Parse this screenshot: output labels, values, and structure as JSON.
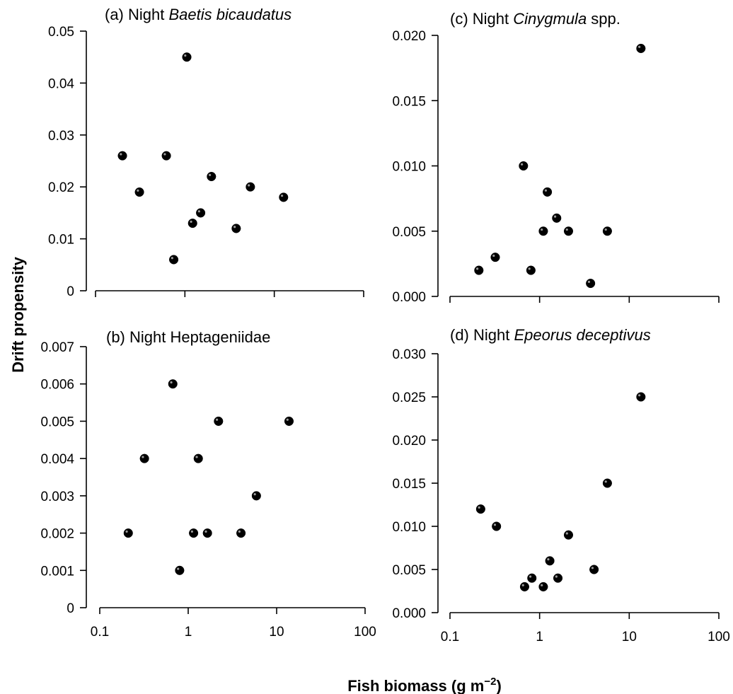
{
  "ylabel": "Drift propensity",
  "xlabel": {
    "main": "Fish biomass (g m",
    "sup": "−2",
    "end": ")"
  },
  "chart_data": [
    {
      "type": "scatter",
      "title_parts": [
        {
          "text": "(a) Night ",
          "italic": false
        },
        {
          "text": "Baetis bicaudatus",
          "italic": true
        }
      ],
      "xscale": "log",
      "xlim": [
        0.1,
        100
      ],
      "xticks": [
        0.1,
        1,
        10,
        100
      ],
      "xticklabels": [
        "0.1",
        "1",
        "10",
        "100"
      ],
      "show_xticklabels": false,
      "ylim": [
        0,
        0.05
      ],
      "yticks": [
        0,
        0.01,
        0.02,
        0.03,
        0.04,
        0.05
      ],
      "yticklabels": [
        "0",
        "0.01",
        "0.02",
        "0.03",
        "0.04",
        "0.05"
      ],
      "points": [
        [
          0.2,
          0.026
        ],
        [
          0.31,
          0.019
        ],
        [
          0.62,
          0.026
        ],
        [
          0.75,
          0.006
        ],
        [
          1.05,
          0.045
        ],
        [
          1.22,
          0.013
        ],
        [
          1.5,
          0.015
        ],
        [
          1.98,
          0.022
        ],
        [
          3.75,
          0.012
        ],
        [
          5.4,
          0.02
        ],
        [
          12.7,
          0.018
        ]
      ]
    },
    {
      "type": "scatter",
      "title_parts": [
        {
          "text": "(b) Night Heptageniidae",
          "italic": false
        }
      ],
      "xscale": "log",
      "xlim": [
        0.1,
        100
      ],
      "xticks": [
        0.1,
        1,
        10,
        100
      ],
      "xticklabels": [
        "0.1",
        "1",
        "10",
        "100"
      ],
      "show_xticklabels": true,
      "ylim": [
        0,
        0.007
      ],
      "yticks": [
        0,
        0.001,
        0.002,
        0.003,
        0.004,
        0.005,
        0.006,
        0.007
      ],
      "yticklabels": [
        "0",
        "0.001",
        "0.002",
        "0.003",
        "0.004",
        "0.005",
        "0.006",
        "0.007"
      ],
      "points": [
        [
          0.21,
          0.002
        ],
        [
          0.32,
          0.004
        ],
        [
          0.67,
          0.006
        ],
        [
          0.8,
          0.001
        ],
        [
          1.15,
          0.002
        ],
        [
          1.3,
          0.004
        ],
        [
          1.65,
          0.002
        ],
        [
          2.2,
          0.005
        ],
        [
          3.95,
          0.002
        ],
        [
          5.9,
          0.003
        ],
        [
          13.8,
          0.005
        ]
      ]
    },
    {
      "type": "scatter",
      "title_parts": [
        {
          "text": "(c) Night ",
          "italic": false
        },
        {
          "text": "Cinygmula",
          "italic": true
        },
        {
          "text": " spp.",
          "italic": false
        }
      ],
      "xscale": "log",
      "xlim": [
        0.1,
        100
      ],
      "xticks": [
        0.1,
        1,
        10,
        100
      ],
      "xticklabels": [
        "0.1",
        "1",
        "10",
        "100"
      ],
      "show_xticklabels": false,
      "ylim": [
        0,
        0.02
      ],
      "yticks": [
        0,
        0.005,
        0.01,
        0.015,
        0.02
      ],
      "yticklabels": [
        "0.000",
        "0.005",
        "0.010",
        "0.015",
        "0.020"
      ],
      "points": [
        [
          0.21,
          0.002
        ],
        [
          0.32,
          0.003
        ],
        [
          0.66,
          0.01
        ],
        [
          0.8,
          0.002
        ],
        [
          1.1,
          0.005
        ],
        [
          1.22,
          0.008
        ],
        [
          1.55,
          0.006
        ],
        [
          2.1,
          0.005
        ],
        [
          3.7,
          0.001
        ],
        [
          5.7,
          0.005
        ],
        [
          13.5,
          0.019
        ]
      ]
    },
    {
      "type": "scatter",
      "title_parts": [
        {
          "text": "(d) Night ",
          "italic": false
        },
        {
          "text": "Epeorus deceptivus",
          "italic": true
        }
      ],
      "xscale": "log",
      "xlim": [
        0.1,
        100
      ],
      "xticks": [
        0.1,
        1,
        10,
        100
      ],
      "xticklabels": [
        "0.1",
        "1",
        "10",
        "100"
      ],
      "show_xticklabels": true,
      "ylim": [
        0,
        0.03
      ],
      "yticks": [
        0,
        0.005,
        0.01,
        0.015,
        0.02,
        0.025,
        0.03
      ],
      "yticklabels": [
        "0.000",
        "0.005",
        "0.010",
        "0.015",
        "0.020",
        "0.025",
        "0.030"
      ],
      "points": [
        [
          0.22,
          0.012
        ],
        [
          0.33,
          0.01
        ],
        [
          0.68,
          0.003
        ],
        [
          0.82,
          0.004
        ],
        [
          1.1,
          0.003
        ],
        [
          1.3,
          0.006
        ],
        [
          1.6,
          0.004
        ],
        [
          2.1,
          0.009
        ],
        [
          4.05,
          0.005
        ],
        [
          5.7,
          0.015
        ],
        [
          13.5,
          0.025
        ]
      ]
    }
  ]
}
